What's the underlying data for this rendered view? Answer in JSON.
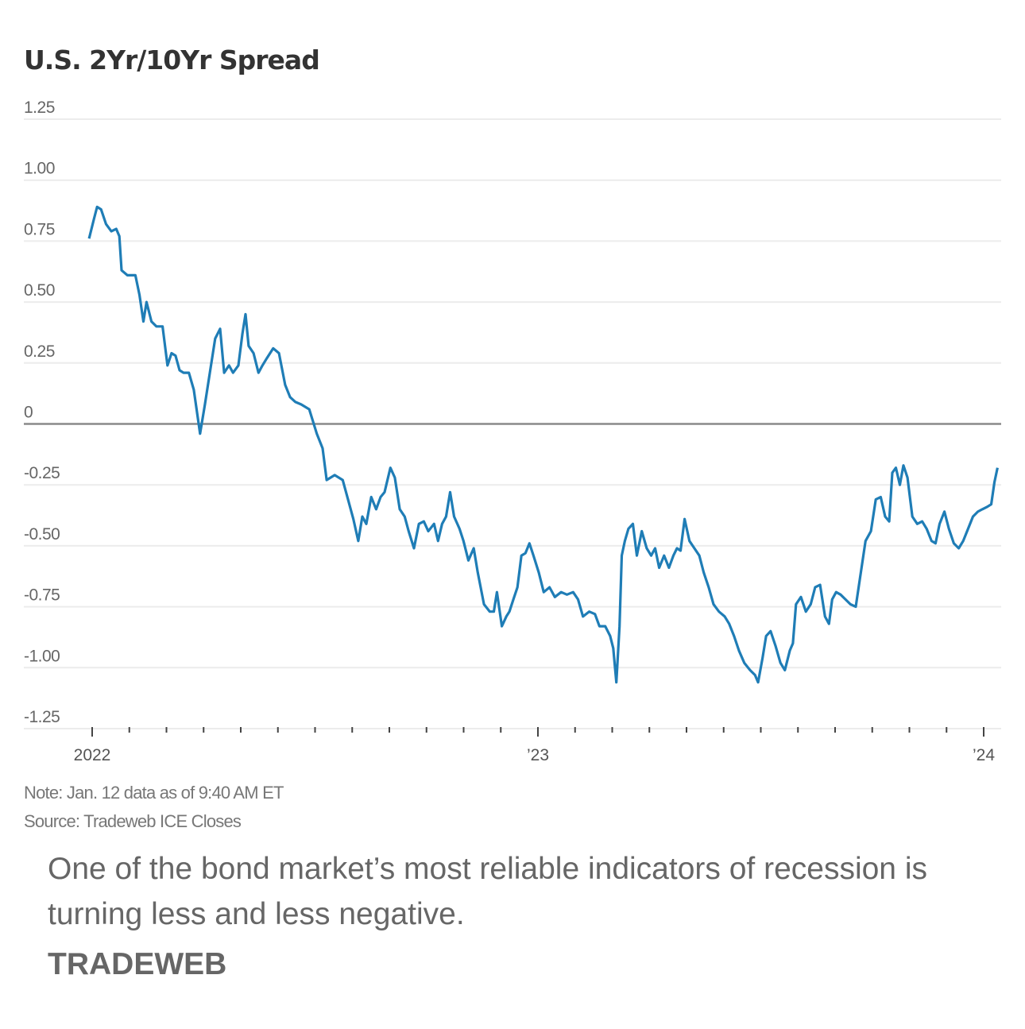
{
  "chart_data": {
    "type": "line",
    "title": "U.S. 2Yr/10Yr Spread",
    "xlabel": "",
    "ylabel": "",
    "ylim": [
      -1.25,
      1.25
    ],
    "yticks": [
      1.25,
      1.0,
      0.75,
      0.5,
      0.25,
      0,
      -0.25,
      -0.5,
      -0.75,
      -1.0,
      -1.25
    ],
    "ytick_labels": [
      "1.25",
      "1.00",
      "0.75",
      "0.50",
      "0.25",
      "0",
      "-0.25",
      "-0.50",
      "-0.75",
      "-1.00",
      "-1.25"
    ],
    "xlim": [
      2021.99,
      2024.04
    ],
    "xticks_major": [
      2022,
      2023,
      2024
    ],
    "xtick_labels": [
      "2022",
      "’23",
      "’24"
    ],
    "xticks_minor_count_per_year": 12,
    "grid": true,
    "zero_line": true,
    "line_color": "#1f7db6",
    "series": [
      {
        "name": "U.S. 2Yr/10Yr Spread",
        "points": [
          [
            2021.993,
            0.76
          ],
          [
            2022.004,
            0.84
          ],
          [
            2022.011,
            0.89
          ],
          [
            2022.02,
            0.88
          ],
          [
            2022.031,
            0.82
          ],
          [
            2022.043,
            0.79
          ],
          [
            2022.054,
            0.8
          ],
          [
            2022.061,
            0.77
          ],
          [
            2022.066,
            0.63
          ],
          [
            2022.079,
            0.61
          ],
          [
            2022.097,
            0.61
          ],
          [
            2022.106,
            0.53
          ],
          [
            2022.115,
            0.42
          ],
          [
            2022.122,
            0.5
          ],
          [
            2022.133,
            0.42
          ],
          [
            2022.144,
            0.4
          ],
          [
            2022.158,
            0.4
          ],
          [
            2022.169,
            0.24
          ],
          [
            2022.178,
            0.29
          ],
          [
            2022.187,
            0.28
          ],
          [
            2022.196,
            0.22
          ],
          [
            2022.205,
            0.21
          ],
          [
            2022.217,
            0.21
          ],
          [
            2022.228,
            0.14
          ],
          [
            2022.242,
            -0.04
          ],
          [
            2022.253,
            0.08
          ],
          [
            2022.264,
            0.21
          ],
          [
            2022.276,
            0.35
          ],
          [
            2022.287,
            0.39
          ],
          [
            2022.296,
            0.21
          ],
          [
            2022.307,
            0.24
          ],
          [
            2022.316,
            0.21
          ],
          [
            2022.328,
            0.24
          ],
          [
            2022.337,
            0.37
          ],
          [
            2022.344,
            0.45
          ],
          [
            2022.351,
            0.32
          ],
          [
            2022.362,
            0.29
          ],
          [
            2022.373,
            0.21
          ],
          [
            2022.382,
            0.24
          ],
          [
            2022.392,
            0.27
          ],
          [
            2022.406,
            0.31
          ],
          [
            2022.419,
            0.29
          ],
          [
            2022.433,
            0.16
          ],
          [
            2022.444,
            0.11
          ],
          [
            2022.456,
            0.09
          ],
          [
            2022.469,
            0.08
          ],
          [
            2022.487,
            0.06
          ],
          [
            2022.504,
            -0.04
          ],
          [
            2022.517,
            -0.1
          ],
          [
            2022.526,
            -0.23
          ],
          [
            2022.544,
            -0.21
          ],
          [
            2022.562,
            -0.23
          ],
          [
            2022.574,
            -0.31
          ],
          [
            2022.586,
            -0.39
          ],
          [
            2022.597,
            -0.48
          ],
          [
            2022.606,
            -0.38
          ],
          [
            2022.615,
            -0.41
          ],
          [
            2022.626,
            -0.3
          ],
          [
            2022.637,
            -0.35
          ],
          [
            2022.647,
            -0.3
          ],
          [
            2022.656,
            -0.28
          ],
          [
            2022.669,
            -0.18
          ],
          [
            2022.679,
            -0.22
          ],
          [
            2022.69,
            -0.35
          ],
          [
            2022.701,
            -0.38
          ],
          [
            2022.71,
            -0.44
          ],
          [
            2022.722,
            -0.51
          ],
          [
            2022.733,
            -0.41
          ],
          [
            2022.744,
            -0.4
          ],
          [
            2022.754,
            -0.44
          ],
          [
            2022.767,
            -0.41
          ],
          [
            2022.776,
            -0.48
          ],
          [
            2022.785,
            -0.41
          ],
          [
            2022.794,
            -0.38
          ],
          [
            2022.803,
            -0.28
          ],
          [
            2022.812,
            -0.38
          ],
          [
            2022.824,
            -0.43
          ],
          [
            2022.833,
            -0.48
          ],
          [
            2022.844,
            -0.56
          ],
          [
            2022.856,
            -0.51
          ],
          [
            2022.865,
            -0.61
          ],
          [
            2022.879,
            -0.74
          ],
          [
            2022.892,
            -0.77
          ],
          [
            2022.901,
            -0.77
          ],
          [
            2022.908,
            -0.69
          ],
          [
            2022.919,
            -0.83
          ],
          [
            2022.929,
            -0.79
          ],
          [
            2022.936,
            -0.77
          ],
          [
            2022.945,
            -0.72
          ],
          [
            2022.954,
            -0.67
          ],
          [
            2022.963,
            -0.54
          ],
          [
            2022.972,
            -0.53
          ],
          [
            2022.981,
            -0.49
          ],
          [
            2022.99,
            -0.54
          ],
          [
            2023.002,
            -0.61
          ],
          [
            2023.013,
            -0.69
          ],
          [
            2023.026,
            -0.67
          ],
          [
            2023.038,
            -0.71
          ],
          [
            2023.052,
            -0.69
          ],
          [
            2023.065,
            -0.7
          ],
          [
            2023.079,
            -0.69
          ],
          [
            2023.09,
            -0.72
          ],
          [
            2023.101,
            -0.79
          ],
          [
            2023.115,
            -0.77
          ],
          [
            2023.128,
            -0.78
          ],
          [
            2023.138,
            -0.83
          ],
          [
            2023.151,
            -0.83
          ],
          [
            2023.162,
            -0.87
          ],
          [
            2023.169,
            -0.92
          ],
          [
            2023.176,
            -1.06
          ],
          [
            2023.183,
            -0.83
          ],
          [
            2023.188,
            -0.54
          ],
          [
            2023.195,
            -0.48
          ],
          [
            2023.203,
            -0.43
          ],
          [
            2023.213,
            -0.41
          ],
          [
            2023.222,
            -0.54
          ],
          [
            2023.233,
            -0.44
          ],
          [
            2023.244,
            -0.51
          ],
          [
            2023.254,
            -0.54
          ],
          [
            2023.263,
            -0.51
          ],
          [
            2023.272,
            -0.59
          ],
          [
            2023.283,
            -0.54
          ],
          [
            2023.294,
            -0.59
          ],
          [
            2023.304,
            -0.54
          ],
          [
            2023.312,
            -0.51
          ],
          [
            2023.32,
            -0.52
          ],
          [
            2023.329,
            -0.39
          ],
          [
            2023.34,
            -0.48
          ],
          [
            2023.351,
            -0.51
          ],
          [
            2023.362,
            -0.54
          ],
          [
            2023.372,
            -0.61
          ],
          [
            2023.383,
            -0.67
          ],
          [
            2023.394,
            -0.74
          ],
          [
            2023.406,
            -0.77
          ],
          [
            2023.419,
            -0.79
          ],
          [
            2023.429,
            -0.82
          ],
          [
            2023.44,
            -0.87
          ],
          [
            2023.451,
            -0.93
          ],
          [
            2023.463,
            -0.98
          ],
          [
            2023.476,
            -1.01
          ],
          [
            2023.487,
            -1.03
          ],
          [
            2023.494,
            -1.06
          ],
          [
            2023.504,
            -0.96
          ],
          [
            2023.512,
            -0.87
          ],
          [
            2023.522,
            -0.85
          ],
          [
            2023.533,
            -0.91
          ],
          [
            2023.544,
            -0.98
          ],
          [
            2023.554,
            -1.01
          ],
          [
            2023.565,
            -0.93
          ],
          [
            2023.572,
            -0.9
          ],
          [
            2023.579,
            -0.74
          ],
          [
            2023.59,
            -0.71
          ],
          [
            2023.601,
            -0.77
          ],
          [
            2023.612,
            -0.74
          ],
          [
            2023.622,
            -0.67
          ],
          [
            2023.633,
            -0.66
          ],
          [
            2023.644,
            -0.79
          ],
          [
            2023.653,
            -0.82
          ],
          [
            2023.66,
            -0.72
          ],
          [
            2023.669,
            -0.69
          ],
          [
            2023.679,
            -0.7
          ],
          [
            2023.69,
            -0.72
          ],
          [
            2023.701,
            -0.74
          ],
          [
            2023.713,
            -0.75
          ],
          [
            2023.722,
            -0.64
          ],
          [
            2023.735,
            -0.48
          ],
          [
            2023.747,
            -0.44
          ],
          [
            2023.758,
            -0.31
          ],
          [
            2023.769,
            -0.3
          ],
          [
            2023.779,
            -0.38
          ],
          [
            2023.788,
            -0.4
          ],
          [
            2023.795,
            -0.2
          ],
          [
            2023.803,
            -0.18
          ],
          [
            2023.812,
            -0.25
          ],
          [
            2023.82,
            -0.17
          ],
          [
            2023.829,
            -0.22
          ],
          [
            2023.84,
            -0.38
          ],
          [
            2023.851,
            -0.41
          ],
          [
            2023.862,
            -0.4
          ],
          [
            2023.872,
            -0.43
          ],
          [
            2023.883,
            -0.48
          ],
          [
            2023.892,
            -0.49
          ],
          [
            2023.901,
            -0.41
          ],
          [
            2023.912,
            -0.36
          ],
          [
            2023.922,
            -0.43
          ],
          [
            2023.933,
            -0.49
          ],
          [
            2023.944,
            -0.51
          ],
          [
            2023.954,
            -0.48
          ],
          [
            2023.965,
            -0.43
          ],
          [
            2023.976,
            -0.38
          ],
          [
            2023.987,
            -0.36
          ],
          [
            2023.997,
            -0.35
          ],
          [
            2024.008,
            -0.34
          ],
          [
            2024.017,
            -0.33
          ],
          [
            2024.024,
            -0.24
          ],
          [
            2024.031,
            -0.18
          ]
        ]
      }
    ]
  },
  "notes": {
    "note": "Note: Jan. 12 data as of 9:40 AM ET",
    "source": "Source: Tradeweb ICE Closes"
  },
  "caption": "One of the bond market’s most reliable indicators of recession is turning less and less negative.",
  "credit": "TRADEWEB"
}
